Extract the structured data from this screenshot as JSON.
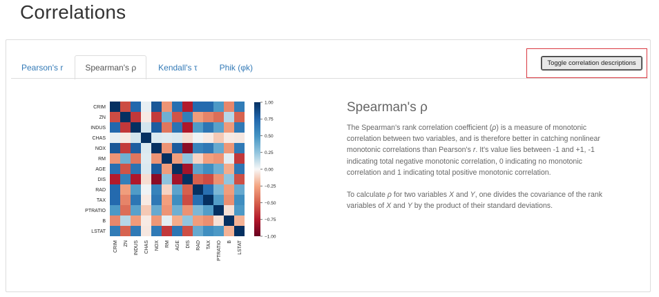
{
  "page": {
    "title": "Correlations"
  },
  "tabs": [
    {
      "label": "Pearson's r",
      "active": false
    },
    {
      "label": "Spearman's ρ",
      "active": true
    },
    {
      "label": "Kendall's τ",
      "active": false
    },
    {
      "label": "Phik (φk)",
      "active": false
    }
  ],
  "toggle": {
    "label": "Toggle correlation descriptions"
  },
  "description": {
    "title": "Spearman's ρ",
    "p1_a": "The Spearman's rank correlation coefficient (",
    "p1_rho": "ρ",
    "p1_b": ") is a measure of monotonic correlation between two variables, and is therefore better in catching nonlinear monotonic correlations than Pearson's ",
    "p1_r": "r",
    "p1_c": ". It's value lies between -1 and +1, -1 indicating total negative monotonic correlation, 0 indicating no monotonic correlation and 1 indicating total positive monotonic correlation.",
    "p2_a": "To calculate ",
    "p2_rho": "ρ",
    "p2_b": " for two variables ",
    "p2_x": "X",
    "p2_c": " and ",
    "p2_y": "Y",
    "p2_d": ", one divides the covariance of the rank variables of ",
    "p2_x2": "X",
    "p2_e": " and ",
    "p2_y2": "Y",
    "p2_f": " by the product of their standard deviations."
  },
  "chart_data": {
    "type": "heatmap",
    "labels": [
      "CRIM",
      "ZN",
      "INDUS",
      "CHAS",
      "NOX",
      "RM",
      "AGE",
      "DIS",
      "RAD",
      "TAX",
      "PTRATIO",
      "B",
      "LSTAT"
    ],
    "values": [
      [
        1.0,
        -0.57,
        0.74,
        0.04,
        0.82,
        -0.31,
        0.7,
        -0.74,
        0.73,
        0.73,
        0.47,
        -0.36,
        0.63
      ],
      [
        -0.57,
        1.0,
        -0.64,
        -0.04,
        -0.63,
        0.36,
        -0.54,
        0.61,
        -0.28,
        -0.37,
        -0.45,
        0.16,
        -0.49
      ],
      [
        0.74,
        -0.64,
        1.0,
        0.09,
        0.79,
        -0.42,
        0.68,
        -0.76,
        0.46,
        0.66,
        0.43,
        -0.29,
        0.64
      ],
      [
        0.04,
        -0.04,
        0.09,
        1.0,
        0.07,
        0.06,
        0.07,
        -0.08,
        0.02,
        -0.04,
        -0.14,
        -0.04,
        -0.05
      ],
      [
        0.82,
        -0.63,
        0.79,
        0.07,
        1.0,
        -0.31,
        0.8,
        -0.88,
        0.59,
        0.65,
        0.39,
        -0.3,
        0.64
      ],
      [
        -0.31,
        0.36,
        -0.42,
        0.06,
        -0.31,
        1.0,
        -0.28,
        0.26,
        -0.11,
        -0.27,
        -0.31,
        0.05,
        -0.64
      ],
      [
        0.7,
        -0.54,
        0.68,
        0.07,
        0.8,
        -0.28,
        1.0,
        -0.8,
        0.42,
        0.53,
        0.36,
        -0.23,
        0.66
      ],
      [
        -0.74,
        0.61,
        -0.76,
        -0.08,
        -0.88,
        0.26,
        -0.8,
        1.0,
        -0.5,
        -0.57,
        -0.32,
        0.25,
        -0.56
      ],
      [
        0.73,
        -0.28,
        0.46,
        0.02,
        0.59,
        -0.11,
        0.42,
        -0.5,
        1.0,
        0.7,
        0.32,
        -0.28,
        0.39
      ],
      [
        0.73,
        -0.37,
        0.66,
        -0.04,
        0.65,
        -0.27,
        0.53,
        -0.57,
        0.7,
        1.0,
        0.45,
        -0.33,
        0.53
      ],
      [
        0.47,
        -0.45,
        0.43,
        -0.14,
        0.39,
        -0.31,
        0.36,
        -0.32,
        0.32,
        0.45,
        1.0,
        -0.07,
        0.47
      ],
      [
        -0.36,
        0.16,
        -0.29,
        -0.04,
        -0.3,
        0.05,
        -0.23,
        0.25,
        -0.28,
        -0.33,
        -0.07,
        1.0,
        -0.21
      ],
      [
        0.63,
        -0.49,
        0.64,
        -0.05,
        0.64,
        -0.64,
        0.66,
        -0.56,
        0.39,
        0.53,
        0.47,
        -0.21,
        1.0
      ]
    ],
    "colorbar": {
      "range": [
        -1,
        1
      ],
      "ticks": [
        "1.00",
        "0.75",
        "0.50",
        "0.25",
        "0.00",
        "−0.25",
        "−0.50",
        "−0.75",
        "−1.00"
      ],
      "tick_values": [
        1,
        0.75,
        0.5,
        0.25,
        0,
        -0.25,
        -0.5,
        -0.75,
        -1
      ],
      "colormap": "RdBu",
      "low_color": "#67001f",
      "high_color": "#053061"
    }
  }
}
